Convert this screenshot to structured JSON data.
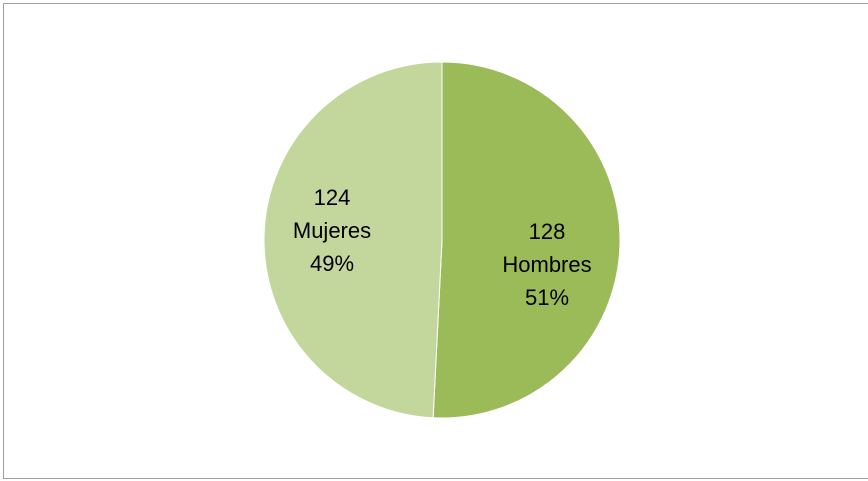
{
  "chart_data": {
    "type": "pie",
    "slices": [
      {
        "label": "Hombres",
        "value": 128,
        "percent": "51%",
        "color": "#9bbb59"
      },
      {
        "label": "Mujeres",
        "value": 124,
        "percent": "49%",
        "color": "#c3d69b"
      }
    ],
    "start_angle_deg": 0,
    "direction": "clockwise",
    "legend": "none"
  }
}
